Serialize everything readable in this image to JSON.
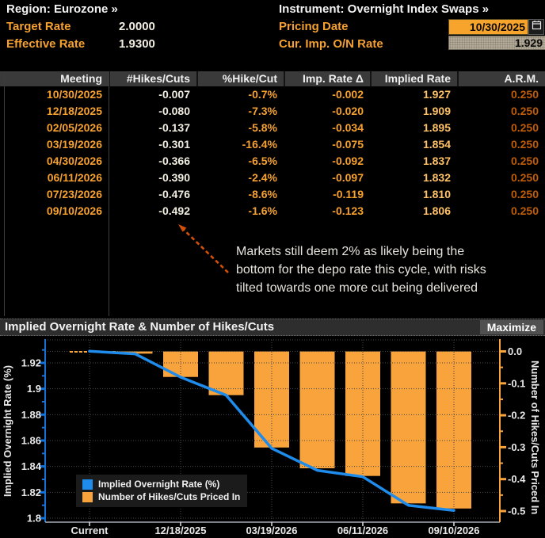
{
  "header": {
    "region": "Region: Eurozone »",
    "instrument": "Instrument: Overnight Index Swaps »",
    "target_rate_label": "Target Rate",
    "target_rate_value": "2.0000",
    "effective_rate_label": "Effective Rate",
    "effective_rate_value": "1.9300",
    "pricing_date_label": "Pricing Date",
    "pricing_date_value": "10/30/2025",
    "cur_imp_on_rate_label": "Cur. Imp. O/N Rate",
    "cur_imp_on_rate_value": "1.929",
    "calendar_icon": "calendar-icon"
  },
  "table": {
    "columns": [
      "Meeting",
      "#Hikes/Cuts",
      "%Hike/Cut",
      "Imp. Rate Δ",
      "Implied Rate",
      "A.R.M."
    ],
    "rows": [
      [
        "10/30/2025",
        "-0.007",
        "-0.7%",
        "-0.002",
        "1.927",
        "0.250"
      ],
      [
        "12/18/2025",
        "-0.080",
        "-7.3%",
        "-0.020",
        "1.909",
        "0.250"
      ],
      [
        "02/05/2026",
        "-0.137",
        "-5.8%",
        "-0.034",
        "1.895",
        "0.250"
      ],
      [
        "03/19/2026",
        "-0.301",
        "-16.4%",
        "-0.075",
        "1.854",
        "0.250"
      ],
      [
        "04/30/2026",
        "-0.366",
        "-6.5%",
        "-0.092",
        "1.837",
        "0.250"
      ],
      [
        "06/11/2026",
        "-0.390",
        "-2.4%",
        "-0.097",
        "1.832",
        "0.250"
      ],
      [
        "07/23/2026",
        "-0.476",
        "-8.6%",
        "-0.119",
        "1.810",
        "0.250"
      ],
      [
        "09/10/2026",
        "-0.492",
        "-1.6%",
        "-0.123",
        "1.806",
        "0.250"
      ]
    ]
  },
  "annotation": {
    "lines": [
      "Markets still deem 2% as likely being the",
      "bottom for the depo rate this cycle, with risks",
      "tilted towards one more cut being delivered"
    ],
    "arrow_color": "#d2500a"
  },
  "chart": {
    "title": "Implied Overnight Rate & Number of Hikes/Cuts",
    "maximize_label": "Maximize"
  },
  "chart_data": {
    "type": "bar",
    "subtype": "dual-axis bar + line",
    "title": "Implied Overnight Rate & Number of Hikes/Cuts",
    "x_categories": [
      "Current",
      "10/30/2025",
      "12/18/2025",
      "02/05/2026",
      "03/19/2026",
      "04/30/2026",
      "06/11/2026",
      "07/23/2026",
      "09/10/2026"
    ],
    "x_tick_labels": [
      "Current",
      "12/18/2025",
      "03/19/2026",
      "06/11/2026",
      "09/10/2026"
    ],
    "x_tick_positions": [
      0,
      2,
      4,
      6,
      8
    ],
    "series": [
      {
        "name": "Implied Overnight Rate (%)",
        "type": "line",
        "axis": "left",
        "color": "#1f8ceb",
        "values": [
          1.929,
          1.927,
          1.909,
          1.895,
          1.854,
          1.837,
          1.832,
          1.81,
          1.806
        ]
      },
      {
        "name": "Number of Hikes/Cuts Priced In",
        "type": "bar",
        "axis": "right",
        "color": "#f8a33c",
        "values": [
          null,
          -0.007,
          -0.08,
          -0.137,
          -0.301,
          -0.366,
          -0.39,
          -0.476,
          -0.492
        ]
      }
    ],
    "left_axis": {
      "label": "Implied Overnight Rate (%)",
      "ticks": [
        1.92,
        1.9,
        1.88,
        1.86,
        1.84,
        1.82,
        1.8
      ],
      "tick_labels": [
        "1.92",
        "1.9",
        "1.88",
        "1.86",
        "1.84",
        "1.82",
        "1.8"
      ],
      "range": [
        1.796,
        1.938
      ]
    },
    "right_axis": {
      "label": "Number of Hikes/Cuts Priced In",
      "ticks": [
        0.0,
        -0.1,
        -0.2,
        -0.3,
        -0.4,
        -0.5
      ],
      "tick_labels": [
        "0.0",
        "-0.1",
        "-0.2",
        "-0.3",
        "-0.4",
        "-0.5"
      ],
      "range": [
        -0.53,
        0.047
      ]
    },
    "grid": true,
    "legend_position": "bottom-left"
  },
  "colors": {
    "accent_orange": "#f8a33c",
    "label_orange": "#f6a12f",
    "line_blue": "#1f8ceb",
    "date_field_bg": "#f7a42c",
    "arm_orange": "#bf5c06",
    "implied_rate_amber": "#ffc166"
  }
}
